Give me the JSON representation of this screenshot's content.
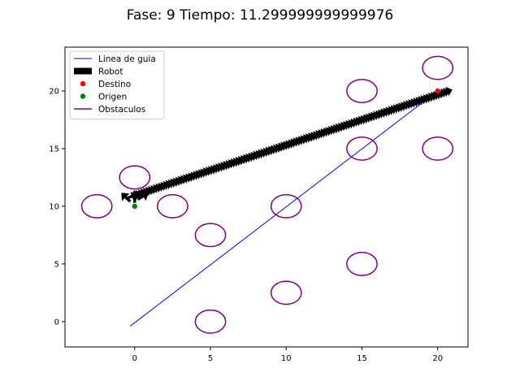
{
  "chart_data": {
    "type": "line",
    "title": "Fase: 9 Tiempo: 11.299999999999976",
    "xlabel": "",
    "ylabel": "",
    "xlim": [
      -4.6,
      22.0
    ],
    "ylim": [
      -2.2,
      23.8
    ],
    "xticks": [
      0,
      5,
      10,
      15,
      20
    ],
    "yticks": [
      0,
      5,
      10,
      15,
      20
    ],
    "grid": false,
    "legend_position": "upper-left",
    "legend": [
      {
        "label": "Linea de guia",
        "kind": "line",
        "color": "#0000ff"
      },
      {
        "label": "Robot",
        "kind": "arrow",
        "color": "#000000"
      },
      {
        "label": "Destino",
        "kind": "point",
        "color": "#ff0000"
      },
      {
        "label": "Origen",
        "kind": "point",
        "color": "#008000"
      },
      {
        "label": "Obstaculos",
        "kind": "line",
        "color": "#800080"
      }
    ],
    "guide_line": {
      "color": "#0000ff",
      "x": [
        -0.3,
        20.0
      ],
      "y": [
        -0.4,
        20.0
      ]
    },
    "destination": {
      "x": 20,
      "y": 20,
      "color": "#ff0000"
    },
    "origin": {
      "x": 0,
      "y": 10,
      "color": "#008000"
    },
    "obstacles": {
      "color": "#800080",
      "radius_x": 1.0,
      "radius_y": 1.0,
      "centers": [
        [
          -2.5,
          10
        ],
        [
          0,
          12.5
        ],
        [
          2.5,
          10
        ],
        [
          5,
          7.5
        ],
        [
          5,
          0
        ],
        [
          10,
          10
        ],
        [
          10,
          2.5
        ],
        [
          15,
          5
        ],
        [
          15,
          15
        ],
        [
          15,
          20
        ],
        [
          20,
          15
        ],
        [
          20,
          22
        ]
      ]
    },
    "robot": {
      "color": "#000000",
      "path": [
        [
          0,
          10.7
        ],
        [
          20.8,
          19.8
        ]
      ],
      "step": 0.18,
      "start_arrows": [
        {
          "x": -0.3,
          "y": 10.4,
          "angle_deg": 135
        },
        {
          "x": 0,
          "y": 10.3,
          "angle_deg": 90
        },
        {
          "x": 0.2,
          "y": 10.6,
          "angle_deg": 30
        }
      ]
    }
  }
}
